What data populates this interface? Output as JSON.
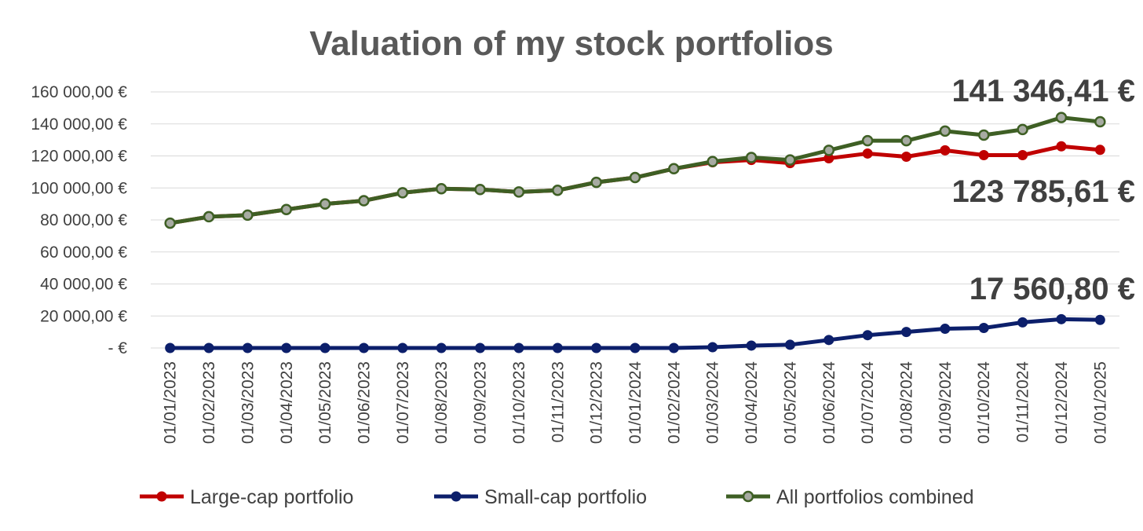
{
  "chart_data": {
    "type": "line",
    "title": "Valuation of my stock portfolios",
    "xlabel": "",
    "ylabel": "",
    "ylim": [
      0,
      160000
    ],
    "yticks": [
      {
        "value": 0,
        "label": "-  €"
      },
      {
        "value": 20000,
        "label": "20 000,00 €"
      },
      {
        "value": 40000,
        "label": "40 000,00 €"
      },
      {
        "value": 60000,
        "label": "60 000,00 €"
      },
      {
        "value": 80000,
        "label": "80 000,00 €"
      },
      {
        "value": 100000,
        "label": "100 000,00 €"
      },
      {
        "value": 120000,
        "label": "120 000,00 €"
      },
      {
        "value": 140000,
        "label": "140 000,00 €"
      },
      {
        "value": 160000,
        "label": "160 000,00 €"
      }
    ],
    "grid": true,
    "legend_position": "bottom",
    "categories": [
      "01/01/2023",
      "01/02/2023",
      "01/03/2023",
      "01/04/2023",
      "01/05/2023",
      "01/06/2023",
      "01/07/2023",
      "01/08/2023",
      "01/09/2023",
      "01/10/2023",
      "01/11/2023",
      "01/12/2023",
      "01/01/2024",
      "01/02/2024",
      "01/03/2024",
      "01/04/2024",
      "01/05/2024",
      "01/06/2024",
      "01/07/2024",
      "01/08/2024",
      "01/09/2024",
      "01/10/2024",
      "01/11/2024",
      "01/12/2024",
      "01/01/2025"
    ],
    "series": [
      {
        "name": "Large-cap portfolio",
        "color": "#c00000",
        "values": [
          78000,
          82000,
          83000,
          86500,
          90000,
          92000,
          97000,
          99500,
          99000,
          97500,
          98500,
          103500,
          106500,
          112000,
          116000,
          117500,
          115500,
          118500,
          121500,
          119500,
          123500,
          120500,
          120500,
          126000,
          123785.61
        ]
      },
      {
        "name": "Small-cap portfolio",
        "color": "#0c1f6b",
        "values": [
          0,
          0,
          0,
          0,
          0,
          0,
          0,
          0,
          0,
          0,
          0,
          0,
          0,
          0,
          500,
          1500,
          2000,
          5000,
          8000,
          10000,
          12000,
          12500,
          16000,
          18000,
          17560.8
        ]
      },
      {
        "name": "All portfolios combined",
        "color": "#3e5f24",
        "marker_fill": "#a7aba2",
        "values": [
          78000,
          82000,
          83000,
          86500,
          90000,
          92000,
          97000,
          99500,
          99000,
          97500,
          98500,
          103500,
          106500,
          112000,
          116500,
          119000,
          117500,
          123500,
          129500,
          129500,
          135500,
          133000,
          136500,
          144000,
          141346.41
        ]
      }
    ],
    "annotations": [
      {
        "text": "141 346,41 €",
        "series": 2,
        "placement": "above"
      },
      {
        "text": "123 785,61 €",
        "series": 0,
        "placement": "below"
      },
      {
        "text": "17 560,80 €",
        "series": 1,
        "placement": "above"
      }
    ]
  }
}
